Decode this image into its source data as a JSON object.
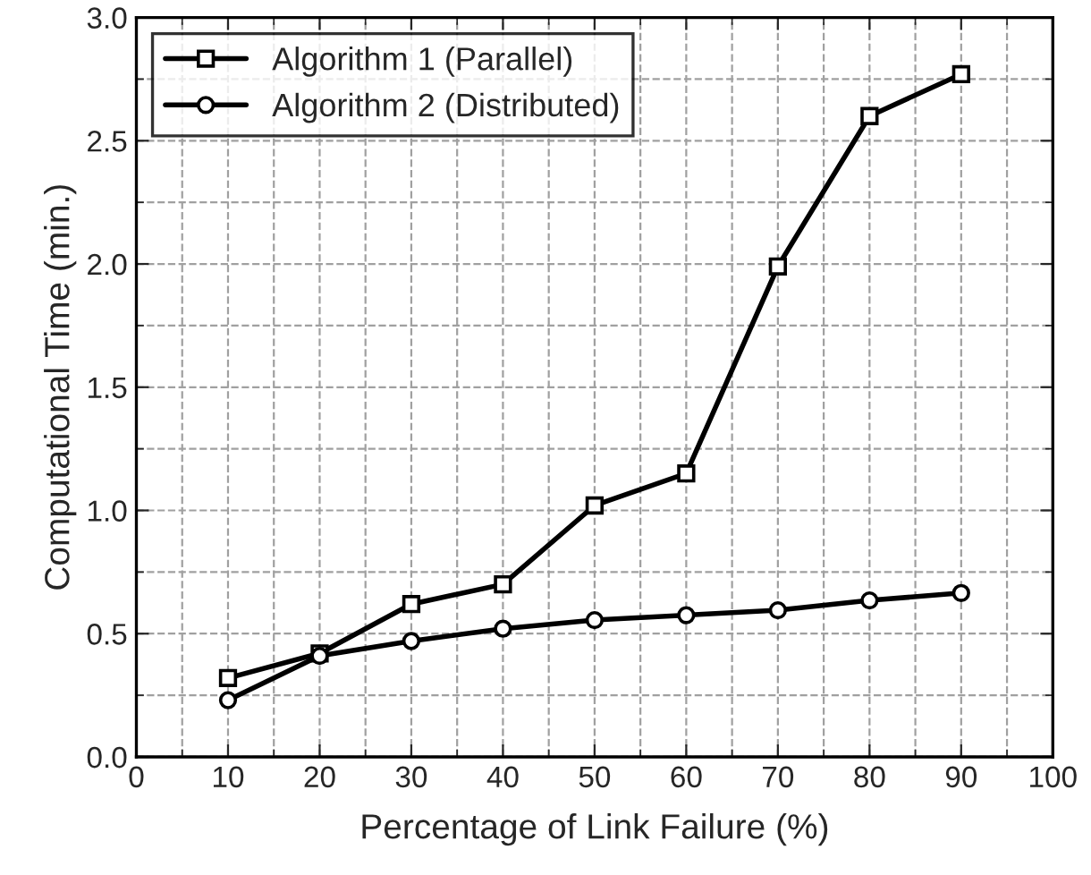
{
  "chart_data": {
    "type": "line",
    "xlabel": "Percentage of Link Failure (%)",
    "ylabel": "Computational Time (min.)",
    "x": [
      10,
      20,
      30,
      40,
      50,
      60,
      70,
      80,
      90
    ],
    "series": [
      {
        "name": "Algorithm 1 (Parallel)",
        "color": "#000000",
        "marker": "square",
        "values": [
          0.32,
          0.42,
          0.62,
          0.7,
          1.02,
          1.15,
          1.99,
          2.6,
          2.77
        ]
      },
      {
        "name": "Algorithm 2 (Distributed)",
        "color": "#000000",
        "marker": "circle",
        "values": [
          0.23,
          0.41,
          0.47,
          0.52,
          0.555,
          0.575,
          0.595,
          0.635,
          0.665
        ]
      }
    ],
    "xlim": [
      0,
      100
    ],
    "xticks": [
      0,
      10,
      20,
      30,
      40,
      50,
      60,
      70,
      80,
      90,
      100
    ],
    "ylim": [
      0,
      3.0
    ],
    "yticks": [
      {
        "value": 0,
        "label": "0.0"
      },
      {
        "value": 0.5,
        "label": "0.5"
      },
      {
        "value": 1.0,
        "label": "1.0"
      },
      {
        "value": 1.5,
        "label": "1.5"
      },
      {
        "value": 2.0,
        "label": "2.0"
      },
      {
        "value": 2.5,
        "label": "2.5"
      },
      {
        "value": 3.0,
        "label": "3.0"
      }
    ],
    "grid": true,
    "legend": "top left",
    "line_style": "solid"
  }
}
